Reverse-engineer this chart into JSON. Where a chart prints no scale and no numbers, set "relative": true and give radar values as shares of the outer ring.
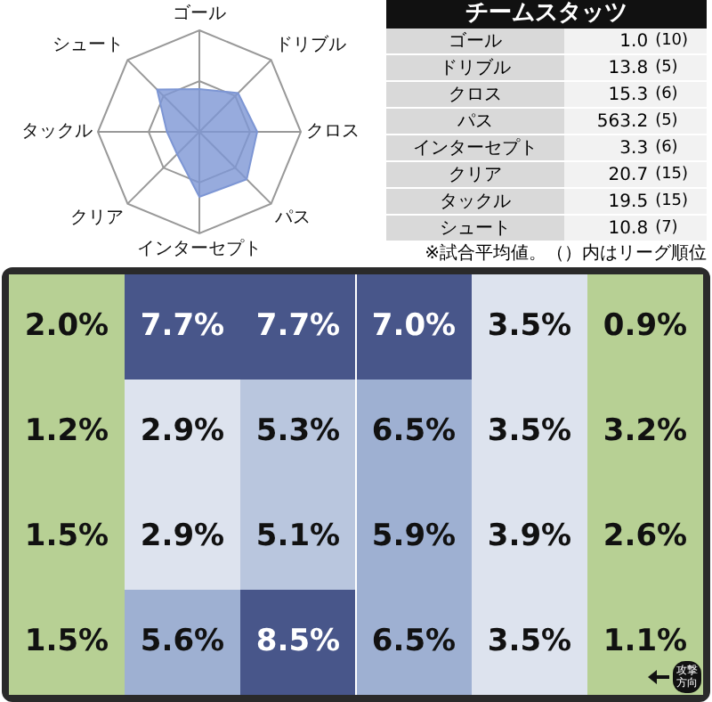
{
  "chart_data": [
    {
      "type": "radar",
      "relative": true,
      "categories": [
        "ゴール",
        "ドリブル",
        "クロス",
        "パス",
        "インターセプト",
        "クリア",
        "タックル",
        "シュート"
      ],
      "series": [
        {
          "color": "#7d96d4",
          "values": [
            0.42,
            0.54,
            0.57,
            0.66,
            0.64,
            0.31,
            0.32,
            0.59
          ]
        }
      ]
    },
    {
      "type": "other",
      "title": "チームスタッツ",
      "categories": [
        "ゴール",
        "ドリブル",
        "クロス",
        "パス",
        "インターセプト",
        "クリア",
        "タックル",
        "シュート"
      ],
      "series": [
        {
          "values": [
            1.0,
            13.8,
            15.3,
            563.2,
            3.3,
            20.7,
            19.5,
            10.8
          ],
          "value_labels": [
            "1.0",
            "13.8",
            "15.3",
            "563.2",
            "3.3",
            "20.7",
            "19.5",
            "10.8"
          ]
        },
        {
          "values": [
            10,
            5,
            6,
            5,
            6,
            15,
            15,
            7
          ],
          "value_labels": [
            "(10)",
            "(5)",
            "(6)",
            "(5)",
            "(6)",
            "(15)",
            "(15)",
            "(7)"
          ]
        }
      ],
      "annotations": [
        "※試合平均値。（）内はリーグ順位"
      ]
    },
    {
      "type": "heatmap",
      "tick_labels": false,
      "categories": [
        null,
        null,
        null,
        null,
        null,
        null
      ],
      "y_categories": [
        null,
        null,
        null,
        null
      ],
      "cells": [
        [
          2.0,
          7.7,
          7.7,
          7.0,
          3.5,
          0.9
        ],
        [
          1.2,
          2.9,
          5.3,
          6.5,
          3.5,
          3.2
        ],
        [
          1.5,
          2.9,
          5.1,
          5.9,
          3.9,
          2.6
        ],
        [
          1.5,
          5.6,
          8.5,
          6.5,
          3.5,
          1.1
        ]
      ],
      "cell_labels": [
        [
          "2.0%",
          "7.7%",
          "7.7%",
          "7.0%",
          "3.5%",
          "0.9%"
        ],
        [
          "1.2%",
          "2.9%",
          "5.3%",
          "6.5%",
          "3.5%",
          "3.2%"
        ],
        [
          "1.5%",
          "2.9%",
          "5.1%",
          "5.9%",
          "3.9%",
          "2.6%"
        ],
        [
          "1.5%",
          "5.6%",
          "8.5%",
          "6.5%",
          "3.5%",
          "1.1%"
        ]
      ],
      "annotations": [
        "攻撃方向"
      ]
    }
  ]
}
